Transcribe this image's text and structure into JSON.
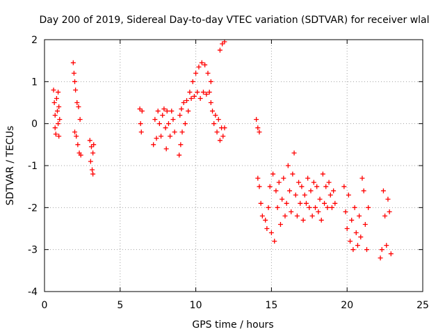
{
  "chart_data": {
    "type": "scatter",
    "title": "Day 200 of 2019, Sidereal Day-to-day VTEC variation (SDTVAR) for receiver wlal",
    "xlabel": "GPS time / hours",
    "ylabel": "SDTVAR / TECUs",
    "xlim": [
      0,
      25
    ],
    "ylim": [
      -4,
      2
    ],
    "x_ticks": [
      "0",
      "5",
      "10",
      "15",
      "20",
      "25"
    ],
    "y_ticks": [
      "-4",
      "-3",
      "-2",
      "-1",
      "0",
      "1",
      "2"
    ],
    "grid": true,
    "marker": "plus",
    "color": "#ff0000",
    "series": [
      {
        "name": "SDTVAR",
        "points": [
          [
            0.6,
            0.8
          ],
          [
            0.65,
            0.5
          ],
          [
            0.7,
            0.2
          ],
          [
            0.7,
            -0.1
          ],
          [
            0.75,
            -0.25
          ],
          [
            0.8,
            0.6
          ],
          [
            0.85,
            0.3
          ],
          [
            0.9,
            0.0
          ],
          [
            0.9,
            0.75
          ],
          [
            0.95,
            -0.3
          ],
          [
            0.95,
            0.4
          ],
          [
            1.0,
            0.1
          ],
          [
            1.9,
            1.45
          ],
          [
            1.95,
            1.2
          ],
          [
            2.0,
            1.0
          ],
          [
            2.0,
            -0.2
          ],
          [
            2.05,
            0.8
          ],
          [
            2.1,
            -0.3
          ],
          [
            2.15,
            0.5
          ],
          [
            2.2,
            -0.5
          ],
          [
            2.25,
            0.4
          ],
          [
            2.3,
            -0.7
          ],
          [
            2.35,
            0.1
          ],
          [
            2.4,
            -0.75
          ],
          [
            3.0,
            -0.4
          ],
          [
            3.05,
            -0.9
          ],
          [
            3.1,
            -0.55
          ],
          [
            3.15,
            -1.1
          ],
          [
            3.2,
            -0.7
          ],
          [
            3.2,
            -1.2
          ],
          [
            3.25,
            -0.5
          ],
          [
            6.3,
            0.35
          ],
          [
            6.35,
            0.0
          ],
          [
            6.4,
            -0.2
          ],
          [
            6.45,
            0.3
          ],
          [
            7.2,
            -0.5
          ],
          [
            7.3,
            0.1
          ],
          [
            7.4,
            -0.35
          ],
          [
            7.5,
            0.3
          ],
          [
            7.6,
            0.0
          ],
          [
            7.7,
            -0.3
          ],
          [
            7.8,
            0.2
          ],
          [
            7.9,
            0.35
          ],
          [
            8.0,
            -0.1
          ],
          [
            8.05,
            -0.6
          ],
          [
            8.1,
            0.3
          ],
          [
            8.2,
            0.0
          ],
          [
            8.3,
            -0.3
          ],
          [
            8.4,
            0.3
          ],
          [
            8.5,
            0.1
          ],
          [
            8.6,
            -0.2
          ],
          [
            8.9,
            -0.75
          ],
          [
            8.95,
            0.2
          ],
          [
            9.0,
            -0.5
          ],
          [
            9.05,
            0.35
          ],
          [
            9.1,
            -0.2
          ],
          [
            9.2,
            0.5
          ],
          [
            9.3,
            0.0
          ],
          [
            9.4,
            0.55
          ],
          [
            9.5,
            0.3
          ],
          [
            9.6,
            0.75
          ],
          [
            9.7,
            0.6
          ],
          [
            9.8,
            1.0
          ],
          [
            9.9,
            0.65
          ],
          [
            10.0,
            1.2
          ],
          [
            10.1,
            0.75
          ],
          [
            10.2,
            1.35
          ],
          [
            10.3,
            0.6
          ],
          [
            10.4,
            1.45
          ],
          [
            10.5,
            0.75
          ],
          [
            10.6,
            1.4
          ],
          [
            10.7,
            0.7
          ],
          [
            10.8,
            1.2
          ],
          [
            10.9,
            0.75
          ],
          [
            11.0,
            1.0
          ],
          [
            11.0,
            0.5
          ],
          [
            11.1,
            0.3
          ],
          [
            11.2,
            0.0
          ],
          [
            11.3,
            0.2
          ],
          [
            11.4,
            -0.2
          ],
          [
            11.5,
            0.1
          ],
          [
            11.6,
            -0.4
          ],
          [
            11.7,
            -0.1
          ],
          [
            11.8,
            -0.3
          ],
          [
            11.9,
            -0.1
          ],
          [
            11.6,
            1.75
          ],
          [
            11.75,
            1.9
          ],
          [
            11.9,
            1.95
          ],
          [
            14.0,
            0.1
          ],
          [
            14.1,
            -0.1
          ],
          [
            14.2,
            -0.2
          ],
          [
            14.1,
            -1.3
          ],
          [
            14.2,
            -1.5
          ],
          [
            14.3,
            -1.9
          ],
          [
            14.4,
            -2.2
          ],
          [
            14.6,
            -2.3
          ],
          [
            14.7,
            -2.5
          ],
          [
            14.8,
            -2.0
          ],
          [
            14.9,
            -1.5
          ],
          [
            15.0,
            -2.6
          ],
          [
            15.1,
            -1.2
          ],
          [
            15.2,
            -2.8
          ],
          [
            15.3,
            -1.6
          ],
          [
            15.4,
            -2.0
          ],
          [
            15.5,
            -1.4
          ],
          [
            15.6,
            -2.4
          ],
          [
            15.7,
            -1.8
          ],
          [
            15.8,
            -1.3
          ],
          [
            15.9,
            -2.2
          ],
          [
            16.0,
            -1.9
          ],
          [
            16.1,
            -1.0
          ],
          [
            16.2,
            -1.6
          ],
          [
            16.3,
            -2.1
          ],
          [
            16.4,
            -1.2
          ],
          [
            16.5,
            -0.7
          ],
          [
            16.6,
            -1.7
          ],
          [
            16.7,
            -2.2
          ],
          [
            16.8,
            -1.4
          ],
          [
            16.9,
            -1.9
          ],
          [
            17.0,
            -1.5
          ],
          [
            17.1,
            -2.3
          ],
          [
            17.2,
            -1.7
          ],
          [
            17.3,
            -1.9
          ],
          [
            17.4,
            -1.3
          ],
          [
            17.5,
            -2.0
          ],
          [
            17.6,
            -1.6
          ],
          [
            17.7,
            -2.2
          ],
          [
            17.8,
            -1.4
          ],
          [
            17.9,
            -2.0
          ],
          [
            18.0,
            -1.5
          ],
          [
            18.1,
            -2.1
          ],
          [
            18.2,
            -1.8
          ],
          [
            18.3,
            -2.3
          ],
          [
            18.4,
            -1.2
          ],
          [
            18.5,
            -1.9
          ],
          [
            18.6,
            -1.5
          ],
          [
            18.7,
            -2.0
          ],
          [
            18.8,
            -1.4
          ],
          [
            18.9,
            -1.7
          ],
          [
            19.0,
            -2.0
          ],
          [
            19.1,
            -1.6
          ],
          [
            19.2,
            -1.9
          ],
          [
            19.8,
            -1.5
          ],
          [
            19.9,
            -2.1
          ],
          [
            20.0,
            -2.5
          ],
          [
            20.1,
            -1.7
          ],
          [
            20.2,
            -2.8
          ],
          [
            20.3,
            -2.3
          ],
          [
            20.4,
            -3.0
          ],
          [
            20.5,
            -2.0
          ],
          [
            20.6,
            -2.6
          ],
          [
            20.7,
            -2.9
          ],
          [
            20.8,
            -2.2
          ],
          [
            20.9,
            -2.7
          ],
          [
            21.0,
            -1.3
          ],
          [
            21.1,
            -1.6
          ],
          [
            21.2,
            -2.4
          ],
          [
            21.3,
            -3.0
          ],
          [
            21.4,
            -2.0
          ],
          [
            22.2,
            -3.2
          ],
          [
            22.3,
            -3.0
          ],
          [
            22.4,
            -1.6
          ],
          [
            22.5,
            -2.2
          ],
          [
            22.6,
            -2.9
          ],
          [
            22.7,
            -1.8
          ],
          [
            22.8,
            -2.1
          ],
          [
            22.9,
            -3.1
          ]
        ]
      }
    ]
  }
}
